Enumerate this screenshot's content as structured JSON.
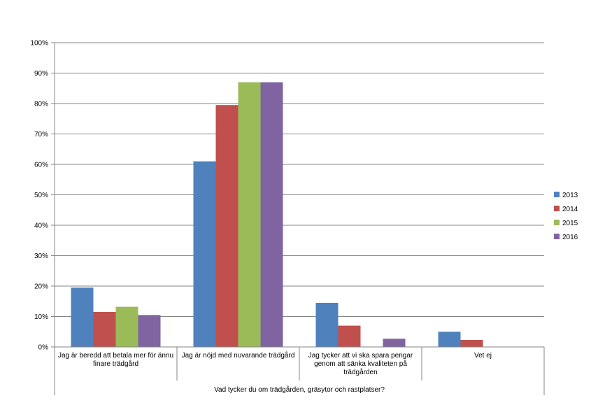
{
  "chart_data": {
    "type": "bar",
    "title": "",
    "xlabel": "Vad tycker du om trädgården, gräsytor och rastplatser?",
    "ylabel": "",
    "ylim": [
      0,
      100
    ],
    "yticks": [
      "0%",
      "10%",
      "20%",
      "30%",
      "40%",
      "50%",
      "60%",
      "70%",
      "80%",
      "90%",
      "100%"
    ],
    "grid": true,
    "legend_position": "right",
    "categories": [
      "Jag är beredd att betala mer för ännu finare trädgård",
      "Jag är nöjd med nuvarande trädgård",
      "Jag tycker att vi ska spara pengar genom att sänka kvaliteten på trädgården",
      "Vet ej"
    ],
    "series": [
      {
        "name": "2013",
        "color": "#4F81BD",
        "values": [
          19.5,
          61,
          14.5,
          5
        ]
      },
      {
        "name": "2014",
        "color": "#C0504D",
        "values": [
          11.5,
          79.5,
          7,
          2.3
        ]
      },
      {
        "name": "2015",
        "color": "#9BBB59",
        "values": [
          13.2,
          87,
          0,
          0
        ]
      },
      {
        "name": "2016",
        "color": "#8064A2",
        "values": [
          10.5,
          87,
          2.7,
          0
        ]
      }
    ]
  }
}
